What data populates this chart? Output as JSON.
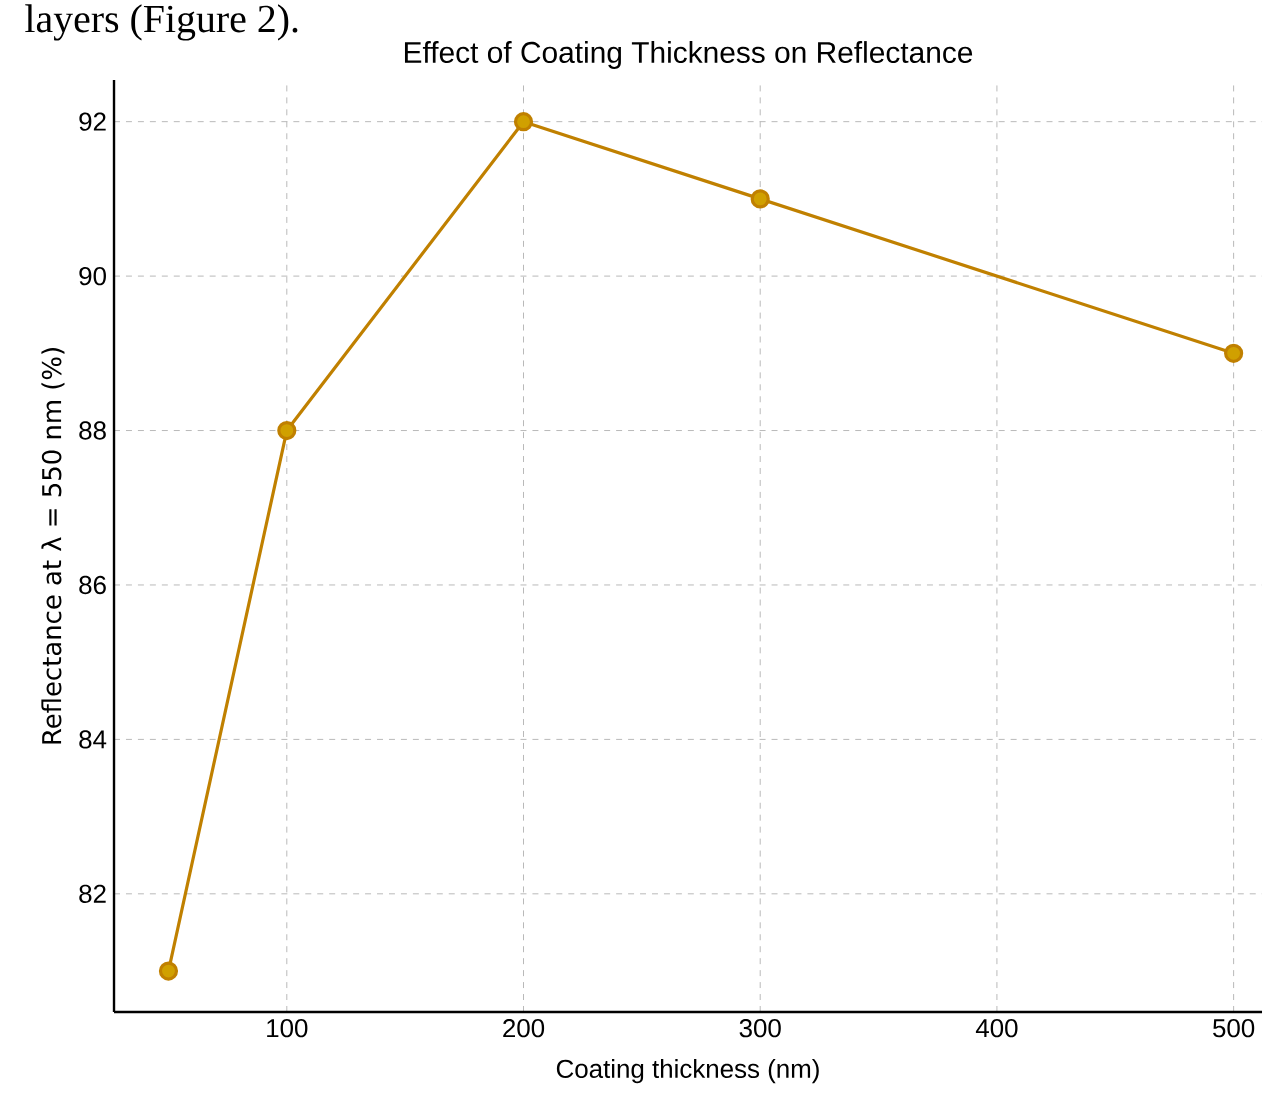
{
  "chart_data": {
    "type": "line",
    "title": "Effect of Coating Thickness on Reflectance",
    "xlabel": "Coating thickness (nm)",
    "ylabel": "Reflectance at λ = 550 nm (%)",
    "annotations": [
      "layers (Figure 2)."
    ],
    "x": [
      50,
      100,
      200,
      300,
      500
    ],
    "series": [
      {
        "color": "#c08000",
        "values": [
          81,
          88,
          92,
          91,
          89
        ]
      }
    ],
    "xlim": [
      27,
      512
    ],
    "ylim": [
      80.47,
      92.54
    ],
    "xticks": [
      100,
      200,
      300,
      400,
      500
    ],
    "yticks": [
      82,
      84,
      86,
      88,
      90,
      92
    ],
    "grid": true,
    "marker": "circle",
    "line_style": "solid"
  }
}
